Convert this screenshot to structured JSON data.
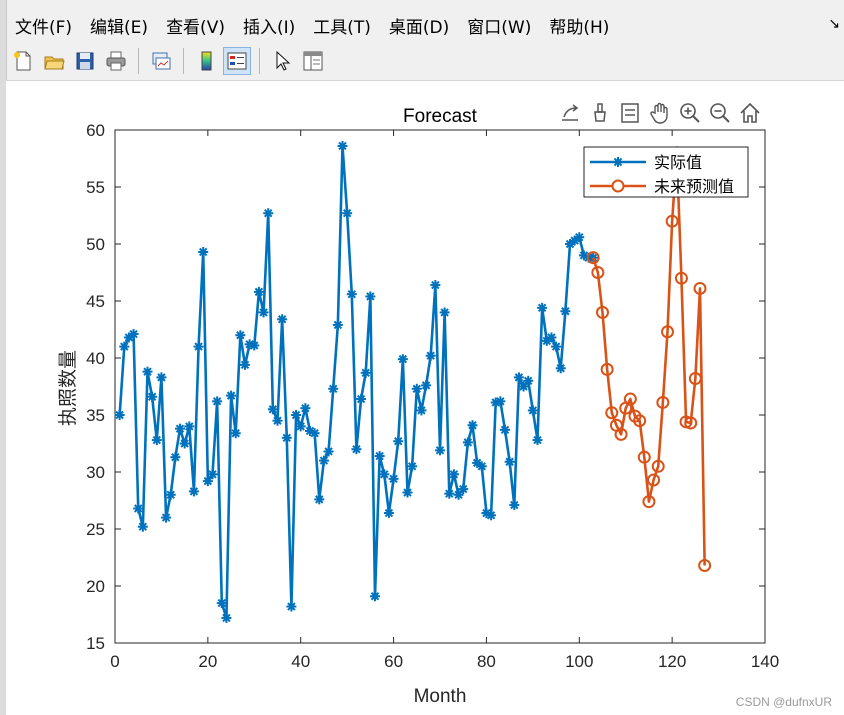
{
  "menubar": {
    "items": [
      "文件(F)",
      "编辑(E)",
      "查看(V)",
      "插入(I)",
      "工具(T)",
      "桌面(D)",
      "窗口(W)",
      "帮助(H)"
    ],
    "dock_glyph": "↘"
  },
  "toolbar": {
    "buttons": [
      {
        "name": "new-figure-icon"
      },
      {
        "name": "open-file-icon"
      },
      {
        "name": "save-icon"
      },
      {
        "name": "print-icon"
      },
      {
        "name": "link-plot-icon"
      },
      {
        "name": "colorbar-icon"
      },
      {
        "name": "legend-icon",
        "active": true
      },
      {
        "name": "edit-plot-arrow-icon"
      },
      {
        "name": "property-inspector-icon"
      }
    ]
  },
  "axes_toolbar": {
    "icons": [
      "export-icon",
      "brush-icon",
      "data-tips-icon",
      "pan-hand-icon",
      "zoom-in-icon",
      "zoom-out-icon",
      "home-icon"
    ]
  },
  "watermark": "CSDN @dufnxUR",
  "colors": {
    "actual": "#0072BD",
    "forecast": "#D95319"
  },
  "chart_data": {
    "type": "line",
    "title": "Forecast",
    "xlabel": "Month",
    "ylabel": "执照数量",
    "xlim": [
      0,
      140
    ],
    "ylim": [
      15,
      60
    ],
    "xticks": [
      0,
      20,
      40,
      60,
      80,
      100,
      120,
      140
    ],
    "yticks": [
      15,
      20,
      25,
      30,
      35,
      40,
      45,
      50,
      55,
      60
    ],
    "grid": false,
    "legend_position": "top-right",
    "series": [
      {
        "name": "实际值",
        "marker": "asterisk",
        "x": [
          1,
          2,
          3,
          4,
          5,
          6,
          7,
          8,
          9,
          10,
          11,
          12,
          13,
          14,
          15,
          16,
          17,
          18,
          19,
          20,
          21,
          22,
          23,
          24,
          25,
          26,
          27,
          28,
          29,
          30,
          31,
          32,
          33,
          34,
          35,
          36,
          37,
          38,
          39,
          40,
          41,
          42,
          43,
          44,
          45,
          46,
          47,
          48,
          49,
          50,
          51,
          52,
          53,
          54,
          55,
          56,
          57,
          58,
          59,
          60,
          61,
          62,
          63,
          64,
          65,
          66,
          67,
          68,
          69,
          70,
          71,
          72,
          73,
          74,
          75,
          76,
          77,
          78,
          79,
          80,
          81,
          82,
          83,
          84,
          85,
          86,
          87,
          88,
          89,
          90,
          91,
          92,
          93,
          94,
          95,
          96,
          97,
          98,
          99,
          100,
          101,
          102,
          103
        ],
        "y": [
          35,
          41,
          41.8,
          42.1,
          26.8,
          25.2,
          38.8,
          36.6,
          32.8,
          38.3,
          26,
          28,
          31.3,
          33.8,
          32.5,
          34,
          28.3,
          41,
          49.3,
          29.2,
          29.8,
          36.2,
          18.5,
          17.2,
          36.7,
          33.4,
          42,
          39.4,
          41.2,
          41.1,
          45.8,
          44,
          52.7,
          35.5,
          34.5,
          43.4,
          33,
          18.2,
          35,
          34,
          35.6,
          33.6,
          33.4,
          27.6,
          31,
          31.8,
          37.3,
          42.9,
          58.6,
          52.7,
          45.6,
          32,
          36.4,
          38.7,
          45.4,
          19.1,
          31.4,
          29.8,
          26.4,
          29.4,
          32.7,
          39.9,
          28.2,
          30.5,
          37.3,
          35.4,
          37.6,
          40.2,
          46.4,
          31.9,
          44,
          28.1,
          29.8,
          28,
          28.5,
          32.6,
          34.1,
          30.8,
          30.5,
          26.4,
          26.2,
          36.1,
          36.2,
          33.7,
          30.9,
          27.1,
          38.3,
          37.5,
          38,
          35.4,
          32.8,
          44.4,
          41.5,
          41.8,
          41,
          39.1,
          44.1,
          50,
          50.3,
          50.6,
          49,
          48.8,
          48.8
        ]
      },
      {
        "name": "未来预测值",
        "marker": "circle",
        "x": [
          103,
          104,
          105,
          106,
          107,
          108,
          109,
          110,
          111,
          112,
          113,
          114,
          115,
          116,
          117,
          118,
          119,
          120,
          121,
          122,
          123,
          124,
          125,
          126,
          127
        ],
        "y": [
          48.8,
          47.5,
          44,
          39,
          35.2,
          34.1,
          33.3,
          35.6,
          36.4,
          34.9,
          34.5,
          31.3,
          27.4,
          29.3,
          30.5,
          36.1,
          42.3,
          52,
          58,
          47,
          34.4,
          34.3,
          38.2,
          46.1,
          21.8
        ]
      }
    ]
  }
}
